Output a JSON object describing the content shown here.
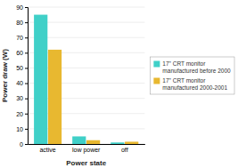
{
  "chart_data": {
    "type": "bar",
    "categories": [
      "active",
      "low power",
      "off"
    ],
    "series": [
      {
        "name": "17\" CRT monitor\nmanufactured before 2000",
        "color": "#40D0C8",
        "values": [
          85,
          5,
          1
        ]
      },
      {
        "name": "17\" CRT monitor\nmanufactured 2000-2001",
        "color": "#E8B830",
        "values": [
          62,
          2.5,
          1.5
        ]
      }
    ],
    "xlabel": "Power state",
    "ylabel": "Power draw (W)",
    "ylim": [
      0,
      90
    ],
    "yticks": [
      0,
      10,
      20,
      30,
      40,
      50,
      60,
      70,
      80,
      90
    ],
    "grid": true,
    "legend": "right"
  }
}
